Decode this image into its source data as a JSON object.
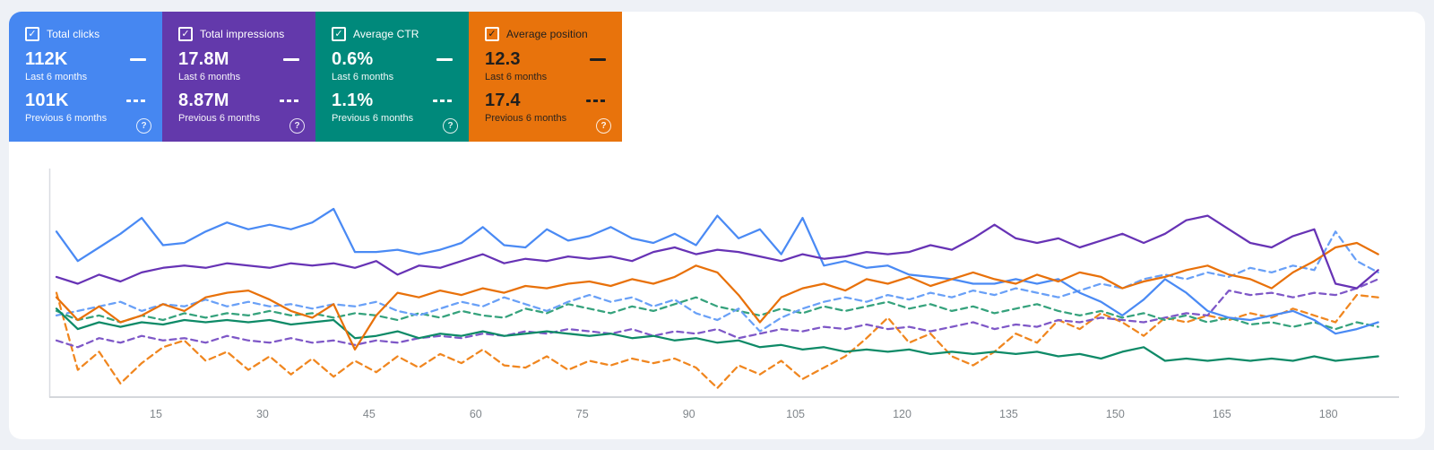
{
  "page": {
    "background": "#eef1f6",
    "panel_background": "#ffffff"
  },
  "cards": [
    {
      "label": "Total clicks",
      "checked": true,
      "value": "112K",
      "value_caption": "Last 6 months",
      "prev_value": "101K",
      "prev_caption": "Previous 6 months",
      "color": "#4687f1",
      "dark_text": false,
      "help_icon": "?",
      "check_glyph": "✓"
    },
    {
      "label": "Total impressions",
      "checked": true,
      "value": "17.8M",
      "value_caption": "Last 6 months",
      "prev_value": "8.87M",
      "prev_caption": "Previous 6 months",
      "color": "#6339ab",
      "dark_text": false,
      "help_icon": "?",
      "check_glyph": "✓"
    },
    {
      "label": "Average CTR",
      "checked": true,
      "value": "0.6%",
      "value_caption": "Last 6 months",
      "prev_value": "1.1%",
      "prev_caption": "Previous 6 months",
      "color": "#00897b",
      "dark_text": false,
      "help_icon": "?",
      "check_glyph": "✓"
    },
    {
      "label": "Average position",
      "checked": true,
      "value": "12.3",
      "value_caption": "Last 6 months",
      "prev_value": "17.4",
      "prev_caption": "Previous 6 months",
      "color": "#e8730c",
      "dark_text": true,
      "help_icon": "?",
      "check_glyph": "✓"
    }
  ],
  "chart_data": {
    "type": "line",
    "title": "",
    "xlabel": "",
    "ylabel": "",
    "grid": false,
    "legend_position": "none",
    "x_axis_range": [
      1,
      187
    ],
    "x_start": 1,
    "x_step": 3,
    "x_ticks": [
      15,
      30,
      45,
      60,
      75,
      90,
      105,
      120,
      135,
      150,
      165,
      180
    ],
    "y_axis_labels_visible": false,
    "y_unit": "relative height 0-100 (chart shows no y-axis labels)",
    "series": [
      {
        "id": "position-prev",
        "name": "Average position — Previous 6 months",
        "color": "#f0861f",
        "style": "dashed",
        "y": [
          46,
          12,
          20,
          6,
          15,
          22,
          25,
          16,
          20,
          12,
          18,
          10,
          17,
          9,
          16,
          11,
          18,
          13,
          19,
          15,
          21,
          14,
          13,
          18,
          12,
          16,
          14,
          17,
          15,
          17,
          13,
          4,
          14,
          10,
          16,
          8,
          13,
          18,
          26,
          35,
          24,
          28,
          18,
          14,
          20,
          28,
          24,
          34,
          30,
          37,
          33,
          27,
          35,
          33,
          36,
          34,
          37,
          35,
          39,
          36,
          33,
          45,
          44
        ]
      },
      {
        "id": "impressions-prev",
        "name": "Total impressions — Previous 6 months",
        "color": "#7e57c7",
        "style": "dashed",
        "y": [
          25,
          22,
          26,
          24,
          27,
          25,
          26,
          24,
          27,
          25,
          24,
          26,
          24,
          25,
          23,
          25,
          24,
          26,
          27,
          26,
          28,
          27,
          29,
          28,
          30,
          29,
          28,
          30,
          27,
          29,
          28,
          30,
          26,
          28,
          30,
          29,
          31,
          30,
          32,
          30,
          31,
          29,
          31,
          33,
          30,
          32,
          31,
          34,
          33,
          35,
          34,
          33,
          35,
          37,
          36,
          47,
          45,
          46,
          44,
          46,
          45,
          48,
          52
        ]
      },
      {
        "id": "ctr-prev",
        "name": "Average CTR — Previous 6 months",
        "color": "#35a27c",
        "style": "dashed",
        "y": [
          38,
          34,
          36,
          33,
          36,
          34,
          37,
          35,
          37,
          36,
          38,
          36,
          37,
          35,
          37,
          36,
          34,
          37,
          35,
          38,
          36,
          35,
          39,
          37,
          41,
          39,
          37,
          40,
          38,
          41,
          44,
          40,
          38,
          36,
          39,
          37,
          40,
          38,
          40,
          42,
          39,
          41,
          38,
          40,
          37,
          39,
          41,
          38,
          36,
          38,
          35,
          37,
          34,
          36,
          33,
          35,
          32,
          33,
          31,
          33,
          30,
          33,
          31
        ]
      },
      {
        "id": "clicks-prev",
        "name": "Total clicks — Previous 6 months",
        "color": "#69a0f7",
        "style": "dashed",
        "y": [
          36,
          38,
          40,
          42,
          38,
          41,
          40,
          43,
          40,
          42,
          40,
          41,
          39,
          41,
          40,
          42,
          38,
          36,
          39,
          42,
          40,
          44,
          41,
          38,
          42,
          45,
          42,
          44,
          40,
          43,
          37,
          34,
          39,
          29,
          35,
          39,
          42,
          44,
          42,
          45,
          43,
          46,
          44,
          47,
          45,
          48,
          46,
          44,
          47,
          50,
          48,
          52,
          54,
          52,
          55,
          53,
          57,
          55,
          58,
          56,
          73,
          60,
          55
        ]
      },
      {
        "id": "ctr-last",
        "name": "Average CTR — Last 6 months",
        "color": "#0e8a67",
        "style": "solid",
        "y": [
          39,
          30,
          33,
          31,
          33,
          32,
          34,
          33,
          34,
          33,
          34,
          32,
          33,
          34,
          26,
          27,
          29,
          26,
          28,
          27,
          29,
          27,
          28,
          29,
          28,
          27,
          28,
          26,
          27,
          25,
          26,
          24,
          25,
          22,
          23,
          21,
          22,
          20,
          21,
          20,
          21,
          19,
          20,
          19,
          20,
          19,
          20,
          18,
          19,
          17,
          20,
          22,
          16,
          17,
          16,
          17,
          16,
          17,
          16,
          18,
          16,
          17,
          18
        ]
      },
      {
        "id": "clicks-last",
        "name": "Total clicks — Last 6 months",
        "color": "#4a8af4",
        "style": "solid",
        "y": [
          73,
          60,
          66,
          72,
          79,
          67,
          68,
          73,
          77,
          74,
          76,
          74,
          77,
          83,
          64,
          64,
          65,
          63,
          65,
          68,
          75,
          67,
          66,
          74,
          69,
          71,
          75,
          70,
          68,
          72,
          67,
          80,
          70,
          74,
          63,
          79,
          58,
          60,
          57,
          58,
          54,
          53,
          52,
          50,
          50,
          52,
          50,
          52,
          46,
          42,
          36,
          43,
          52,
          46,
          38,
          35,
          34,
          36,
          38,
          34,
          28,
          30,
          33
        ]
      },
      {
        "id": "position-last",
        "name": "Average position — Last 6 months",
        "color": "#e8710a",
        "style": "solid",
        "y": [
          44,
          34,
          40,
          33,
          36,
          41,
          38,
          44,
          46,
          47,
          43,
          38,
          35,
          41,
          21,
          36,
          46,
          44,
          47,
          45,
          48,
          46,
          49,
          48,
          50,
          51,
          49,
          52,
          50,
          53,
          58,
          55,
          45,
          33,
          44,
          48,
          50,
          47,
          52,
          50,
          53,
          49,
          52,
          55,
          52,
          50,
          54,
          51,
          55,
          53,
          48,
          51,
          53,
          56,
          58,
          54,
          52,
          48,
          55,
          60,
          66,
          68,
          63
        ]
      },
      {
        "id": "impressions-last",
        "name": "Total impressions — Last 6 months",
        "color": "#6733b5",
        "style": "solid",
        "y": [
          53,
          50,
          54,
          51,
          55,
          57,
          58,
          57,
          59,
          58,
          57,
          59,
          58,
          59,
          57,
          60,
          54,
          58,
          57,
          60,
          63,
          59,
          61,
          60,
          62,
          61,
          62,
          60,
          64,
          66,
          63,
          65,
          64,
          62,
          60,
          63,
          61,
          62,
          64,
          63,
          64,
          67,
          65,
          70,
          76,
          70,
          68,
          70,
          66,
          69,
          72,
          68,
          72,
          78,
          80,
          74,
          68,
          66,
          71,
          74,
          50,
          48,
          56
        ]
      }
    ]
  }
}
